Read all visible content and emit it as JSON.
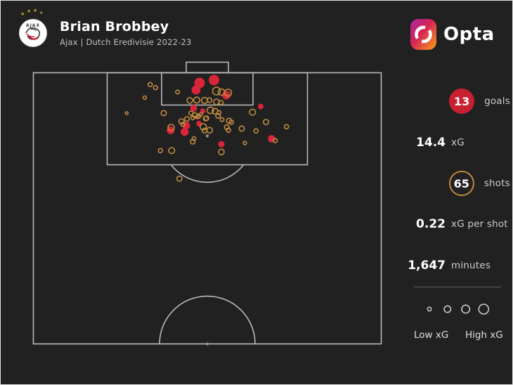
{
  "header": {
    "player": "Brian Brobbey",
    "subtitle": "Ajax | Dutch Eredivisie 2022-23",
    "club_logo": "ajax-crest"
  },
  "brand": {
    "name": "Opta"
  },
  "stats": {
    "goals": {
      "value": "13",
      "label": "goals"
    },
    "xg": {
      "value": "14.4",
      "label": "xG"
    },
    "shots": {
      "value": "65",
      "label": "shots"
    },
    "xg_per_shot": {
      "value": "0.22",
      "label": "xG per shot"
    },
    "minutes": {
      "value": "1,647",
      "label": "minutes"
    }
  },
  "legend": {
    "low_label": "Low xG",
    "high_label": "High xG",
    "circle_radii": [
      2.7,
      4.7,
      5.7,
      7
    ]
  },
  "colors": {
    "background": "#212121",
    "pitch_line": "#b9b9b9",
    "goal_fill": "#d8253a",
    "goal_badge": "#c92031",
    "shot_ring": "#c08a3e",
    "value_text": "#ffffff",
    "label_text": "#cdcdcd"
  },
  "chart_data": {
    "type": "scatter",
    "title": "Brian Brobbey shot map — Ajax, Dutch Eredivisie 2022-23",
    "note": "points are [x, y, r] in page pixels on the half-pitch (goal at top); marker radius encodes xG (Low xG small, High xG large)",
    "totals": {
      "goals": 13,
      "shots": 65,
      "xg": 14.4,
      "xg_per_shot": 0.22,
      "minutes": 1647
    },
    "series": [
      {
        "name": "goals",
        "marker": "filled-red",
        "points": [
          [
            283,
            117,
            7.5
          ],
          [
            303.5,
            113,
            7.5
          ],
          [
            278,
            127,
            6.5
          ],
          [
            321,
            134.5,
            6
          ],
          [
            274.5,
            153,
            5
          ],
          [
            287.5,
            157,
            3.7
          ],
          [
            282.3,
            175,
            4
          ],
          [
            264.3,
            177.7,
            5.3
          ],
          [
            261.7,
            186.7,
            5.7
          ],
          [
            241.7,
            184.5,
            5.5
          ],
          [
            314,
            204.3,
            4.5
          ],
          [
            370,
            150.5,
            4
          ],
          [
            385.5,
            196.5,
            5.3
          ]
        ]
      },
      {
        "name": "other-shots",
        "marker": "open-orange",
        "points": [
          [
            212.7,
            119.3,
            3
          ],
          [
            220.3,
            123.7,
            3
          ],
          [
            205,
            138,
            2.4
          ],
          [
            251.7,
            130,
            2.7
          ],
          [
            179.3,
            160,
            2
          ],
          [
            232,
            160,
            3.7
          ],
          [
            227.3,
            213.3,
            3
          ],
          [
            243.3,
            213.3,
            4.3
          ],
          [
            254.3,
            253.3,
            3.7
          ],
          [
            307,
            128.5,
            5.5
          ],
          [
            314,
            130,
            4.5
          ],
          [
            323.5,
            131,
            5
          ],
          [
            269,
            142,
            4
          ],
          [
            279,
            141.5,
            4.3
          ],
          [
            290,
            142,
            4.3
          ],
          [
            297,
            141.5,
            3.3
          ],
          [
            307,
            144,
            4
          ],
          [
            313.5,
            145,
            3
          ],
          [
            298.3,
            156,
            4.7
          ],
          [
            305,
            157.3,
            4
          ],
          [
            310.7,
            159.3,
            2.7
          ],
          [
            309.3,
            164,
            3.3
          ],
          [
            292.7,
            167.3,
            3.3
          ],
          [
            276.7,
            163.3,
            3.7
          ],
          [
            281.7,
            164.3,
            3
          ],
          [
            285,
            161.7,
            2.3
          ],
          [
            270.7,
            160,
            3
          ],
          [
            265,
            168.3,
            3.3
          ],
          [
            273.3,
            166.7,
            2.7
          ],
          [
            280,
            165.3,
            2.7
          ],
          [
            291.7,
            167.7,
            3.3
          ],
          [
            257.3,
            171.7,
            3.7
          ],
          [
            259.3,
            176,
            3
          ],
          [
            288.3,
            179.5,
            4.5
          ],
          [
            290,
            185,
            3.3
          ],
          [
            297.3,
            184.3,
            4
          ],
          [
            275,
            196.3,
            2.7
          ],
          [
            273.3,
            200.7,
            3.3
          ],
          [
            242.5,
            180.5,
            4.5
          ],
          [
            315,
            169.3,
            2.7
          ],
          [
            325,
            171,
            3.7
          ],
          [
            328.3,
            173,
            3
          ],
          [
            321.7,
            180,
            3.3
          ],
          [
            324,
            184.3,
            3
          ],
          [
            343,
            182,
            3.7
          ],
          [
            363.3,
            185.3,
            3
          ],
          [
            358.3,
            158.7,
            4.3
          ],
          [
            377.5,
            172.7,
            3.7
          ],
          [
            406.7,
            179.3,
            3
          ],
          [
            390.7,
            199,
            3
          ],
          [
            347.5,
            202.5,
            2.3
          ],
          [
            314,
            215.3,
            4
          ]
        ]
      }
    ]
  }
}
